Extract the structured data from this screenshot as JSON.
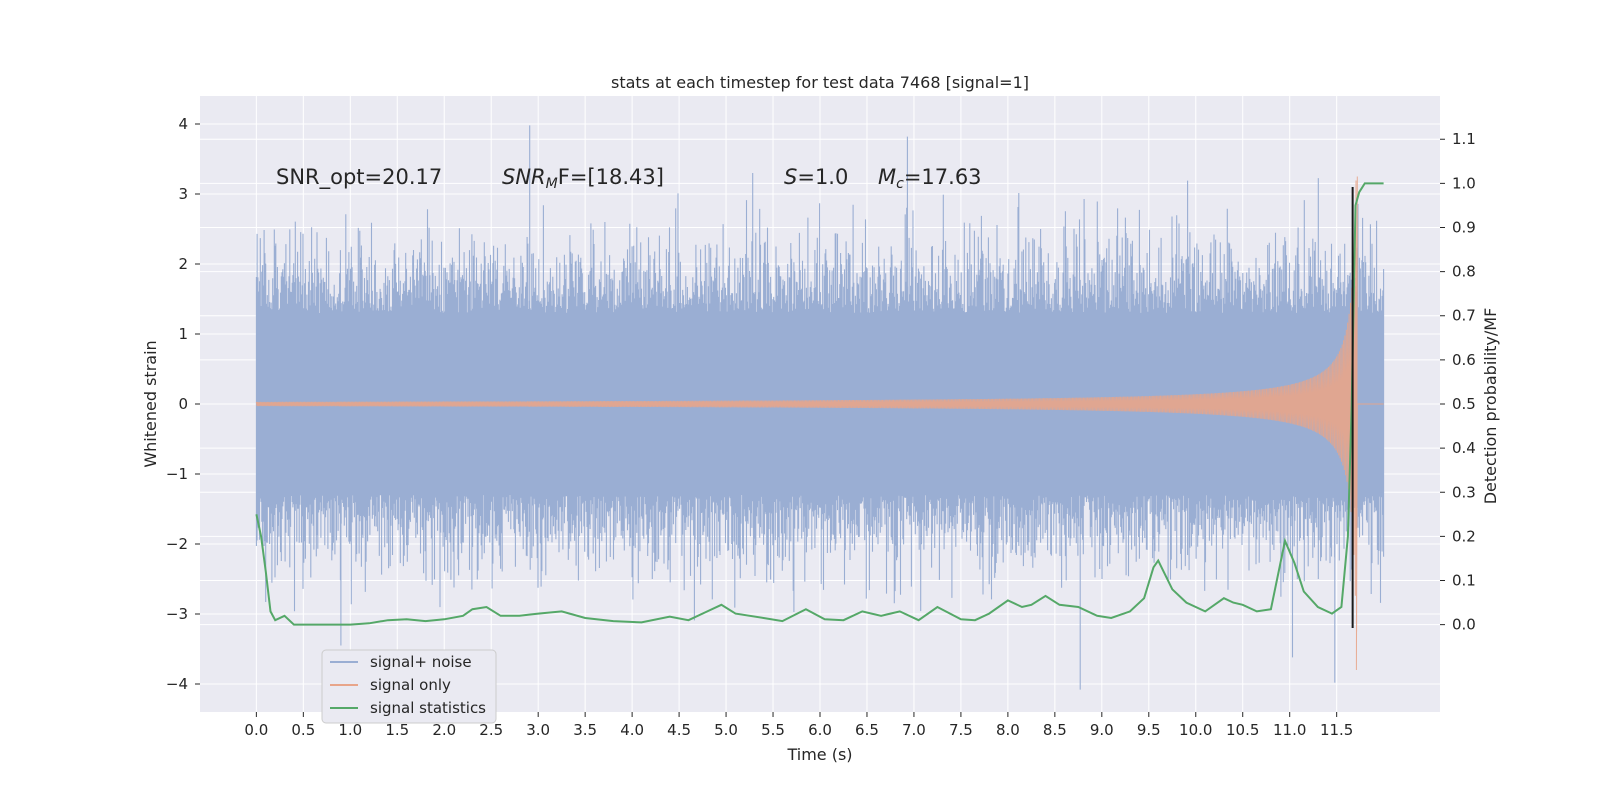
{
  "chart_data": {
    "type": "line",
    "title": "stats at each timestep for test data 7468 [signal=1]",
    "xlabel": "Time (s)",
    "ylabel_left": "Whitened strain",
    "ylabel_right": "Detection probability/MF",
    "xlim": [
      -0.6,
      12.6
    ],
    "ylim_left": [
      -4.4,
      4.4
    ],
    "ylim_right": [
      -0.198,
      1.198
    ],
    "x_ticks": [
      0.0,
      0.5,
      1.0,
      1.5,
      2.0,
      2.5,
      3.0,
      3.5,
      4.0,
      4.5,
      5.0,
      5.5,
      6.0,
      6.5,
      7.0,
      7.5,
      8.0,
      8.5,
      9.0,
      9.5,
      10.0,
      10.5,
      11.0,
      11.5
    ],
    "x_tick_labels": [
      "0.0",
      "0.5",
      "1.0",
      "1.5",
      "2.0",
      "2.5",
      "3.0",
      "3.5",
      "4.0",
      "4.5",
      "5.0",
      "5.5",
      "6.0",
      "6.5",
      "7.0",
      "7.5",
      "8.0",
      "8.5",
      "9.0",
      "9.5",
      "10.0",
      "10.5",
      "11.0",
      "11.5"
    ],
    "y_left_ticks": [
      -4,
      -3,
      -2,
      -1,
      0,
      1,
      2,
      3,
      4
    ],
    "y_left_tick_labels": [
      "−4",
      "−3",
      "−2",
      "−1",
      "0",
      "1",
      "2",
      "3",
      "4"
    ],
    "y_right_ticks": [
      0.0,
      0.1,
      0.2,
      0.3,
      0.4,
      0.5,
      0.6,
      0.7,
      0.8,
      0.9,
      1.0,
      1.1
    ],
    "y_right_tick_labels": [
      "0.0",
      "0.1",
      "0.2",
      "0.3",
      "0.4",
      "0.5",
      "0.6",
      "0.7",
      "0.8",
      "0.9",
      "1.0",
      "1.1"
    ],
    "grid": true,
    "legend_position": "lower-left",
    "annotations": {
      "snr_opt": "SNR_opt=20.17",
      "snr_mf_sym": "SNR",
      "snr_mf_sub": "M",
      "snr_mf_rest": "F=[18.43]",
      "s_sym": "S",
      "s_rest": "=1.0",
      "mc_sym": "M",
      "mc_sub": "c",
      "mc_rest": "=17.63"
    },
    "series": [
      {
        "name": "signal+ noise",
        "color": "#9aaed3",
        "axis": "left",
        "x_range": [
          0.0,
          12.0
        ],
        "envelope": {
          "typical_abs_max": 2.0,
          "peak_max": 4.0,
          "peak_min": -4.1
        },
        "spikes": [
          [
            2.91,
            3.98
          ],
          [
            6.93,
            3.82
          ],
          [
            8.77,
            -4.08
          ],
          [
            0.9,
            -3.45
          ],
          [
            11.48,
            -3.98
          ],
          [
            11.03,
            -3.62
          ]
        ]
      },
      {
        "name": "signal only",
        "color": "#e8a58a",
        "axis": "left",
        "x_range": [
          0.0,
          11.72
        ],
        "chirp_peak_time": 11.72,
        "peak_amplitude": 3.25,
        "min_value": -3.8
      },
      {
        "name": "signal statistics",
        "color": "#55a868",
        "axis": "right",
        "x": [
          0.0,
          0.05,
          0.1,
          0.15,
          0.2,
          0.3,
          0.4,
          0.5,
          0.6,
          0.8,
          1.0,
          1.2,
          1.4,
          1.6,
          1.8,
          2.0,
          2.2,
          2.3,
          2.45,
          2.6,
          2.8,
          3.0,
          3.25,
          3.5,
          3.8,
          4.1,
          4.4,
          4.6,
          4.8,
          4.95,
          5.1,
          5.4,
          5.6,
          5.85,
          6.05,
          6.25,
          6.45,
          6.65,
          6.85,
          7.05,
          7.25,
          7.5,
          7.65,
          7.8,
          8.0,
          8.15,
          8.25,
          8.4,
          8.55,
          8.75,
          8.95,
          9.1,
          9.3,
          9.45,
          9.55,
          9.6,
          9.75,
          9.9,
          10.1,
          10.3,
          10.4,
          10.5,
          10.65,
          10.8,
          10.95,
          11.05,
          11.15,
          11.3,
          11.45,
          11.55,
          11.62,
          11.66,
          11.7,
          11.74,
          11.8,
          11.88,
          11.95,
          12.0
        ],
        "y": [
          0.25,
          0.2,
          0.12,
          0.03,
          0.01,
          0.02,
          0.0,
          0.0,
          0.0,
          0.0,
          0.0,
          0.003,
          0.01,
          0.012,
          0.008,
          0.012,
          0.02,
          0.035,
          0.04,
          0.02,
          0.02,
          0.025,
          0.03,
          0.015,
          0.008,
          0.005,
          0.018,
          0.01,
          0.03,
          0.045,
          0.025,
          0.015,
          0.008,
          0.035,
          0.012,
          0.01,
          0.03,
          0.02,
          0.03,
          0.01,
          0.04,
          0.012,
          0.01,
          0.025,
          0.055,
          0.04,
          0.045,
          0.065,
          0.045,
          0.04,
          0.02,
          0.015,
          0.03,
          0.06,
          0.13,
          0.145,
          0.08,
          0.05,
          0.03,
          0.06,
          0.05,
          0.045,
          0.03,
          0.035,
          0.19,
          0.14,
          0.075,
          0.04,
          0.025,
          0.04,
          0.2,
          0.5,
          0.95,
          0.98,
          1.0,
          1.0,
          1.0,
          1.0
        ]
      }
    ],
    "marker_line": {
      "color": "#1a1a1a",
      "x": 11.67,
      "y_range": [
        -3.2,
        3.1
      ]
    }
  }
}
